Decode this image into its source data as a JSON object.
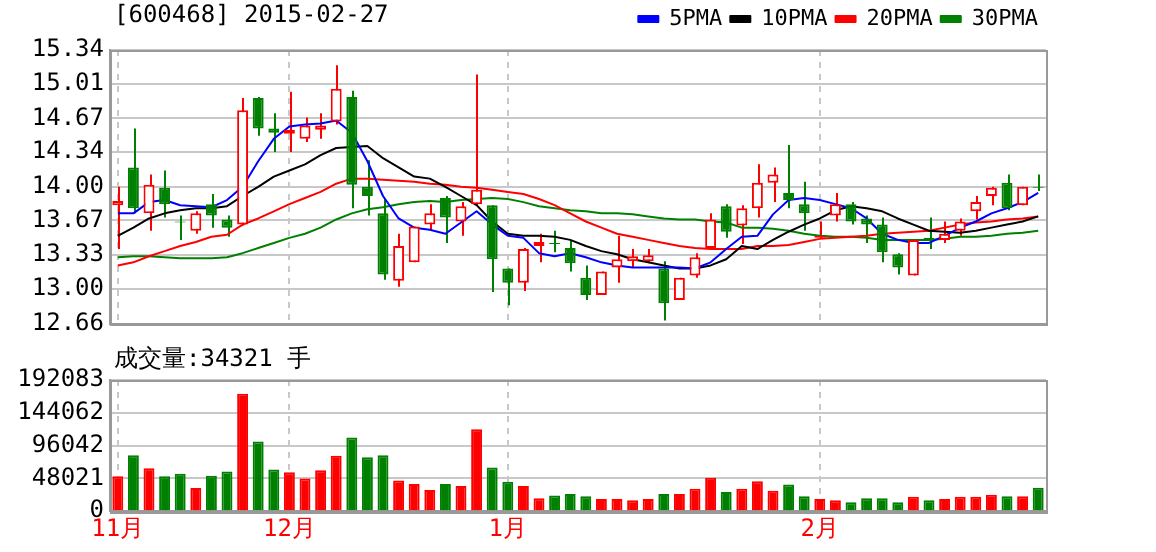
{
  "chart_data": [
    {
      "type": "candlestick",
      "title": "[600468] 2015-02-27",
      "categories": [
        null,
        null,
        null,
        null,
        null,
        null,
        null,
        null,
        null,
        null,
        null,
        null,
        null,
        null,
        null,
        null,
        null,
        null,
        null,
        null,
        null,
        null,
        null,
        null,
        null,
        null,
        null,
        null,
        null,
        null,
        null,
        null,
        null,
        null,
        null,
        null,
        null,
        null,
        null,
        null,
        null,
        null,
        null,
        null,
        null,
        null,
        null,
        null,
        null,
        null,
        null,
        null,
        null,
        null,
        null,
        null,
        null,
        null,
        null,
        null
      ],
      "ohlc": [
        [
          13.82,
          14.0,
          13.39,
          13.86
        ],
        [
          14.19,
          14.57,
          13.74,
          13.79
        ],
        [
          13.74,
          14.12,
          13.57,
          14.02
        ],
        [
          13.99,
          14.16,
          13.7,
          13.83
        ],
        [
          13.66,
          13.72,
          13.48,
          13.65
        ],
        [
          13.57,
          13.76,
          13.54,
          13.74
        ],
        [
          13.83,
          13.93,
          13.6,
          13.72
        ],
        [
          13.68,
          13.72,
          13.51,
          13.6
        ],
        [
          13.63,
          14.87,
          13.62,
          14.75
        ],
        [
          14.87,
          14.88,
          14.5,
          14.57
        ],
        [
          14.57,
          14.72,
          14.34,
          14.53
        ],
        [
          14.52,
          14.93,
          14.34,
          14.56
        ],
        [
          14.47,
          14.68,
          14.44,
          14.6
        ],
        [
          14.56,
          14.72,
          14.47,
          14.6
        ],
        [
          14.64,
          15.19,
          14.61,
          14.96
        ],
        [
          14.88,
          14.94,
          13.79,
          14.02
        ],
        [
          14.0,
          14.26,
          13.72,
          13.91
        ],
        [
          13.74,
          13.88,
          13.09,
          13.14
        ],
        [
          13.08,
          13.54,
          13.02,
          13.42
        ],
        [
          13.26,
          13.61,
          13.26,
          13.61
        ],
        [
          13.63,
          13.83,
          13.57,
          13.74
        ],
        [
          13.89,
          13.91,
          13.45,
          13.7
        ],
        [
          13.66,
          13.85,
          13.52,
          13.81
        ],
        [
          13.83,
          15.1,
          13.82,
          13.97
        ],
        [
          13.82,
          13.82,
          12.97,
          13.29
        ],
        [
          13.2,
          13.2,
          12.84,
          13.06
        ],
        [
          13.06,
          13.4,
          12.98,
          13.39
        ],
        [
          13.42,
          13.54,
          13.26,
          13.46
        ],
        [
          13.45,
          13.57,
          13.36,
          13.44
        ],
        [
          13.4,
          13.48,
          13.17,
          13.25
        ],
        [
          13.11,
          13.23,
          12.89,
          12.94
        ],
        [
          12.94,
          13.17,
          12.94,
          13.17
        ],
        [
          13.21,
          13.52,
          13.06,
          13.29
        ],
        [
          13.27,
          13.39,
          13.21,
          13.32
        ],
        [
          13.27,
          13.39,
          13.25,
          13.33
        ],
        [
          13.2,
          13.27,
          12.69,
          12.86
        ],
        [
          12.89,
          13.11,
          12.89,
          13.11
        ],
        [
          13.13,
          13.35,
          13.11,
          13.31
        ],
        [
          13.4,
          13.74,
          13.39,
          13.68
        ],
        [
          13.81,
          13.83,
          13.5,
          13.56
        ],
        [
          13.62,
          13.82,
          13.44,
          13.79
        ],
        [
          13.79,
          14.22,
          13.7,
          14.04
        ],
        [
          14.04,
          14.19,
          13.85,
          14.12
        ],
        [
          13.94,
          14.41,
          13.79,
          13.87
        ],
        [
          13.83,
          14.05,
          13.57,
          13.74
        ],
        [
          13.5,
          13.66,
          13.5,
          13.52
        ],
        [
          13.72,
          13.94,
          13.66,
          13.83
        ],
        [
          13.83,
          13.85,
          13.63,
          13.66
        ],
        [
          13.69,
          13.72,
          13.45,
          13.63
        ],
        [
          13.63,
          13.7,
          13.26,
          13.36
        ],
        [
          13.34,
          13.35,
          13.14,
          13.21
        ],
        [
          13.13,
          13.48,
          13.13,
          13.48
        ],
        [
          13.5,
          13.7,
          13.39,
          13.48
        ],
        [
          13.48,
          13.66,
          13.45,
          13.54
        ],
        [
          13.57,
          13.69,
          13.52,
          13.66
        ],
        [
          13.76,
          13.91,
          13.68,
          13.85
        ],
        [
          13.91,
          14.0,
          13.82,
          13.99
        ],
        [
          14.04,
          14.12,
          13.77,
          13.79
        ],
        [
          13.82,
          14.0,
          13.82,
          14.0
        ],
        [
          14.0,
          14.12,
          13.96,
          13.99
        ]
      ],
      "series": [
        {
          "name": "5PMA",
          "type": "line",
          "color": "#0000ff",
          "values": [
            13.74,
            13.74,
            13.85,
            13.87,
            13.82,
            13.81,
            13.8,
            13.87,
            14.0,
            14.25,
            14.47,
            14.59,
            14.61,
            14.62,
            14.65,
            14.53,
            14.25,
            13.91,
            13.69,
            13.6,
            13.58,
            13.54,
            13.65,
            13.76,
            13.63,
            13.52,
            13.5,
            13.35,
            13.32,
            13.35,
            13.31,
            13.26,
            13.23,
            13.21,
            13.21,
            13.21,
            13.21,
            13.2,
            13.26,
            13.39,
            13.51,
            13.52,
            13.73,
            13.87,
            13.89,
            13.87,
            13.83,
            13.79,
            13.69,
            13.54,
            13.48,
            13.45,
            13.45,
            13.52,
            13.6,
            13.66,
            13.74,
            13.79,
            13.85,
            13.94
          ]
        },
        {
          "name": "10PMA",
          "type": "line",
          "color": "#000000",
          "values": [
            13.52,
            13.6,
            13.69,
            13.74,
            13.77,
            13.79,
            13.79,
            13.81,
            13.91,
            14.0,
            14.1,
            14.16,
            14.22,
            14.31,
            14.38,
            14.39,
            14.4,
            14.28,
            14.19,
            14.1,
            14.08,
            14.0,
            13.91,
            13.82,
            13.66,
            13.54,
            13.52,
            13.52,
            13.51,
            13.48,
            13.42,
            13.37,
            13.34,
            13.29,
            13.26,
            13.23,
            13.2,
            13.2,
            13.23,
            13.29,
            13.42,
            13.39,
            13.48,
            13.56,
            13.63,
            13.69,
            13.77,
            13.81,
            13.79,
            13.76,
            13.69,
            13.63,
            13.57,
            13.56,
            13.55,
            13.57,
            13.6,
            13.63,
            13.66,
            13.71
          ]
        },
        {
          "name": "20PMA",
          "type": "line",
          "color": "#ff0000",
          "values": [
            13.23,
            13.26,
            13.32,
            13.37,
            13.42,
            13.46,
            13.51,
            13.53,
            13.63,
            13.69,
            13.76,
            13.83,
            13.89,
            13.95,
            14.03,
            14.08,
            14.08,
            14.07,
            14.06,
            14.05,
            14.03,
            14.02,
            14.0,
            13.99,
            13.97,
            13.95,
            13.93,
            13.88,
            13.82,
            13.74,
            13.66,
            13.6,
            13.54,
            13.51,
            13.48,
            13.45,
            13.42,
            13.4,
            13.39,
            13.39,
            13.39,
            13.42,
            13.42,
            13.43,
            13.46,
            13.49,
            13.5,
            13.51,
            13.52,
            13.54,
            13.55,
            13.56,
            13.57,
            13.6,
            13.63,
            13.65,
            13.66,
            13.68,
            13.69,
            13.71
          ]
        },
        {
          "name": "30PMA",
          "type": "line",
          "color": "#008000",
          "values": [
            13.31,
            13.32,
            13.32,
            13.31,
            13.3,
            13.3,
            13.3,
            13.31,
            13.35,
            13.4,
            13.45,
            13.5,
            13.54,
            13.6,
            13.68,
            13.74,
            13.78,
            13.8,
            13.83,
            13.85,
            13.86,
            13.85,
            13.87,
            13.88,
            13.89,
            13.88,
            13.85,
            13.81,
            13.79,
            13.77,
            13.76,
            13.74,
            13.74,
            13.73,
            13.71,
            13.69,
            13.68,
            13.68,
            13.66,
            13.65,
            13.6,
            13.6,
            13.59,
            13.57,
            13.54,
            13.52,
            13.51,
            13.51,
            13.5,
            13.48,
            13.48,
            13.48,
            13.48,
            13.49,
            13.51,
            13.51,
            13.52,
            13.54,
            13.55,
            13.57
          ]
        }
      ],
      "ylim": [
        12.66,
        15.34
      ],
      "yticks": [
        12.66,
        {
          "value": 13,
          "label": "13.00"
        },
        13.33,
        13.67,
        {
          "value": 14,
          "label": "14.00"
        },
        14.34,
        14.67,
        15.01,
        15.34
      ],
      "grid": true,
      "legend": "top right",
      "tick_labels": "y"
    },
    {
      "type": "bar",
      "title": "成交量:34321 手",
      "categories": [
        "11月",
        null,
        null,
        null,
        null,
        null,
        null,
        null,
        null,
        null,
        null,
        "12月",
        null,
        null,
        null,
        null,
        null,
        null,
        null,
        null,
        null,
        null,
        null,
        null,
        null,
        "1月",
        null,
        null,
        null,
        null,
        null,
        null,
        null,
        null,
        null,
        null,
        null,
        null,
        null,
        null,
        null,
        null,
        null,
        null,
        null,
        "2月",
        null,
        null,
        null,
        null,
        null,
        null,
        null,
        null,
        null,
        null,
        null,
        null,
        null,
        null
      ],
      "values": [
        51000,
        82000,
        63000,
        51000,
        55000,
        34000,
        52000,
        58000,
        172000,
        102000,
        61000,
        57000,
        48000,
        60000,
        81000,
        108000,
        79000,
        82000,
        45000,
        40000,
        31000,
        40000,
        37000,
        120000,
        64000,
        43000,
        37000,
        19000,
        23000,
        25000,
        22000,
        18000,
        18000,
        16000,
        18000,
        25000,
        25000,
        33000,
        49000,
        28000,
        33000,
        44000,
        30000,
        39000,
        22000,
        18000,
        16000,
        13000,
        19000,
        19000,
        13000,
        21000,
        16000,
        18000,
        21000,
        21000,
        24000,
        22000,
        22000,
        34321
      ],
      "colors": [
        "#ff0000",
        "#008000",
        "#ff0000",
        "#008000",
        "#008000",
        "#ff0000",
        "#008000",
        "#008000",
        "#ff0000",
        "#008000",
        "#008000",
        "#ff0000",
        "#ff0000",
        "#ff0000",
        "#ff0000",
        "#008000",
        "#008000",
        "#008000",
        "#ff0000",
        "#ff0000",
        "#ff0000",
        "#008000",
        "#ff0000",
        "#ff0000",
        "#008000",
        "#008000",
        "#ff0000",
        "#ff0000",
        "#008000",
        "#008000",
        "#008000",
        "#ff0000",
        "#ff0000",
        "#ff0000",
        "#ff0000",
        "#008000",
        "#ff0000",
        "#ff0000",
        "#ff0000",
        "#008000",
        "#ff0000",
        "#ff0000",
        "#ff0000",
        "#008000",
        "#008000",
        "#ff0000",
        "#ff0000",
        "#008000",
        "#008000",
        "#008000",
        "#008000",
        "#ff0000",
        "#008000",
        "#ff0000",
        "#ff0000",
        "#ff0000",
        "#ff0000",
        "#008000",
        "#ff0000",
        "#008000"
      ],
      "ylim": [
        0,
        192083
      ],
      "yticks": [
        0,
        48021,
        96042,
        144062,
        192083
      ],
      "grid": true
    }
  ]
}
